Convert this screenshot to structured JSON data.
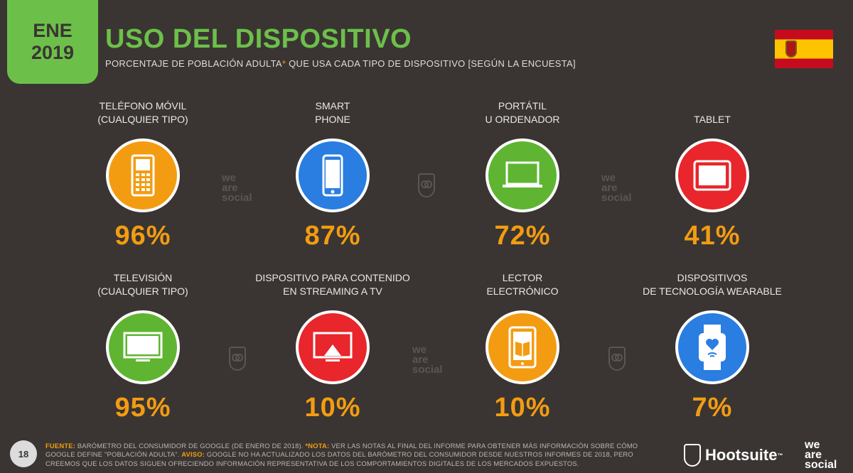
{
  "header": {
    "badge_line1": "ENE",
    "badge_line2": "2019",
    "title": "USO DEL DISPOSITIVO",
    "subtitle_a": "PORCENTAJE DE POBLACIÓN ADULTA",
    "subtitle_ast": "*",
    "subtitle_b": " QUE USA CADA TIPO DE DISPOSITIVO [SEGÚN LA ENCUESTA]"
  },
  "colors": {
    "background": "#3a3532",
    "accent_green": "#6cc04a",
    "value_orange": "#f39c12",
    "orange_circle": "#f39c12",
    "blue_circle": "#2a7de1",
    "green_circle": "#5fb531",
    "red_circle": "#e8262b"
  },
  "devices": [
    {
      "label": "TELÉFONO MÓVIL\n(CUALQUIER TIPO)",
      "value": "96%",
      "icon": "mobile-phone-icon",
      "color": "#f39c12"
    },
    {
      "label": "SMART\nPHONE",
      "value": "87%",
      "icon": "smartphone-icon",
      "color": "#2a7de1"
    },
    {
      "label": "PORTÁTIL\nU ORDENADOR",
      "value": "72%",
      "icon": "laptop-icon",
      "color": "#5fb531"
    },
    {
      "label": "TABLET",
      "value": "41%",
      "icon": "tablet-icon",
      "color": "#e8262b"
    },
    {
      "label": "TELEVISIÓN\n(CUALQUIER TIPO)",
      "value": "95%",
      "icon": "television-icon",
      "color": "#5fb531"
    },
    {
      "label": "DISPOSITIVO PARA CONTENIDO\nEN STREAMING A TV",
      "value": "10%",
      "icon": "streaming-device-icon",
      "color": "#e8262b"
    },
    {
      "label": "LECTOR\nELECTRÓNICO",
      "value": "10%",
      "icon": "ereader-icon",
      "color": "#f39c12"
    },
    {
      "label": "DISPOSITIVOS\nDE TECNOLOGÍA WEARABLE",
      "value": "7%",
      "icon": "smartwatch-icon",
      "color": "#2a7de1"
    }
  ],
  "watermark": {
    "line1": "we",
    "line2": "are",
    "line3": "social"
  },
  "footer": {
    "page_number": "18",
    "fuente_label": "FUENTE:",
    "fuente_text": " BARÓMETRO DEL CONSUMIDOR DE GOOGLE (DE ENERO DE 2018). ",
    "nota_label": "*NOTA:",
    "nota_text": " VER LAS NOTAS AL FINAL DEL INFORME PARA OBTENER MÁS INFORMACIÓN SOBRE CÓMO GOOGLE DEFINE \"POBLACIÓN ADULTA\". ",
    "aviso_label": "AVISO:",
    "aviso_text": " GOOGLE NO HA ACTUALIZADO LOS DATOS DEL BARÓMETRO DEL CONSUMIDOR DESDE NUESTROS INFORMES DE 2018, PERO CREEMOS QUE LOS DATOS SIGUEN OFRECIENDO INFORMACIÓN REPRESENTATIVA DE LOS COMPORTAMIENTOS DIGITALES DE LOS MERCADOS EXPUESTOS.",
    "hootsuite": "Hootsuite",
    "hootsuite_tm": "™"
  }
}
